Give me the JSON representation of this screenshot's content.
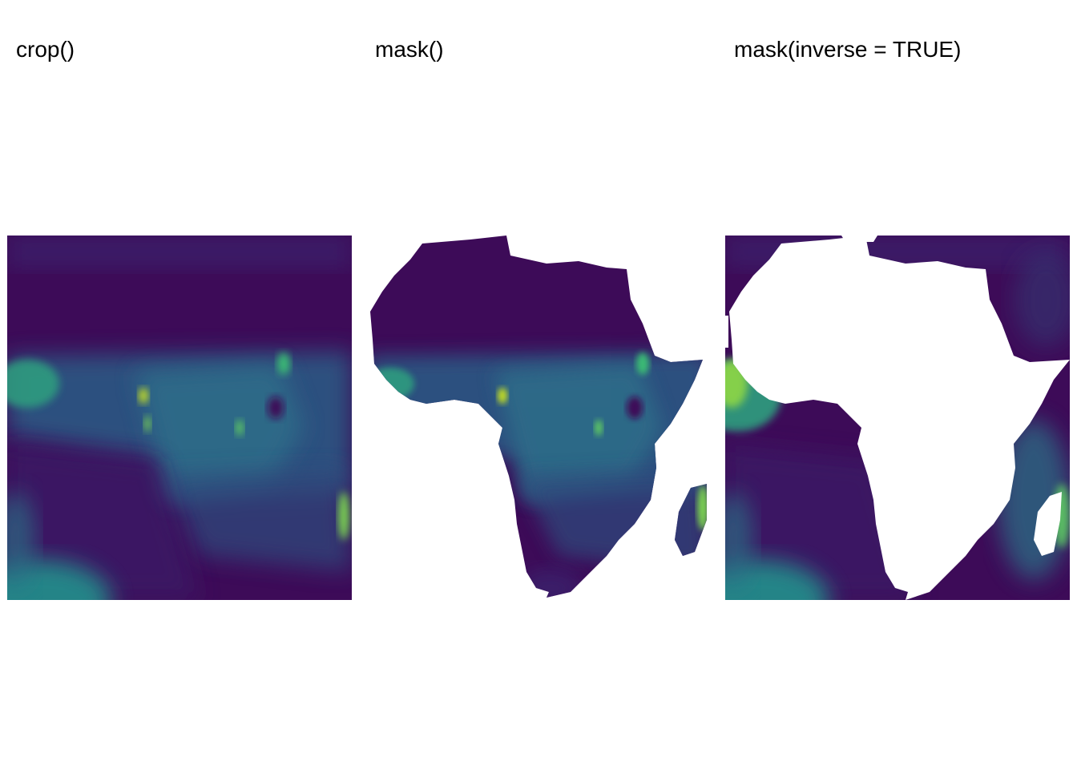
{
  "panels": [
    {
      "title": "crop()",
      "mode": "crop"
    },
    {
      "title": "mask()",
      "mode": "mask"
    },
    {
      "title": "mask(inverse = TRUE)",
      "mode": "mask-inverse"
    }
  ],
  "colors": {
    "background": "#ffffff",
    "viridis_low": "#440154",
    "viridis_deep": "#3b0f5c",
    "viridis_mid_low": "#34306f",
    "viridis_mid": "#2a6f86",
    "viridis_mid_high": "#21918c",
    "viridis_high": "#5ec962",
    "viridis_peak": "#fde725"
  },
  "colormap": "viridis"
}
